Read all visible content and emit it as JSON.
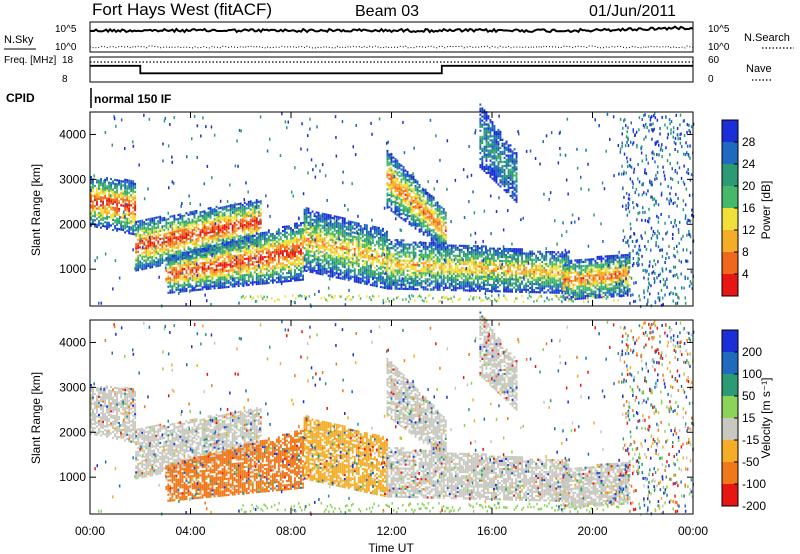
{
  "header": {
    "title": "Fort Hays West (fitACF)",
    "beam": "Beam 03",
    "date": "01/Jun/2011"
  },
  "chart_data": [
    {
      "type": "line",
      "panel": "noise",
      "series": [
        {
          "name": "N.Sky",
          "style": "solid"
        },
        {
          "name": "N.Search",
          "style": "dotted"
        }
      ],
      "yticks_left": [
        "10^5",
        "10^0"
      ],
      "yticks_right": [
        "10^5",
        "10^0"
      ]
    },
    {
      "type": "line",
      "panel": "frequency",
      "series": [
        {
          "name": "Freq. [MHz]",
          "style": "solid",
          "x": [
            "00:00",
            "02:00",
            "02:00",
            "14:00",
            "14:00",
            "24:00"
          ],
          "y": [
            14.5,
            14.5,
            11.5,
            11.5,
            14.5,
            14.5
          ]
        },
        {
          "name": "Nave",
          "style": "dotted"
        }
      ],
      "yticks_left": [
        "18",
        "8"
      ],
      "yticks_right": [
        "60",
        "0"
      ],
      "ylim_left": [
        8,
        18
      ],
      "ylim_right": [
        0,
        60
      ]
    },
    {
      "type": "table",
      "panel": "cpid",
      "label": "CPID",
      "rows": [
        {
          "start": "00:00",
          "end": "24:00",
          "text": "normal 150 IF"
        }
      ]
    },
    {
      "type": "heatmap",
      "panel": "power",
      "xlabel": "",
      "ylabel": "Slant Range [km]",
      "yticks": [
        1000,
        2000,
        3000,
        4000
      ],
      "ylim": [
        180,
        4500
      ],
      "colorbar": {
        "label": "Power [dB]",
        "ticks": [
          4,
          8,
          12,
          16,
          20,
          24,
          28
        ],
        "range": [
          0,
          32
        ],
        "colors": [
          "#1b2fd8",
          "#1f6abf",
          "#2c9a74",
          "#46b86a",
          "#f0e13a",
          "#f5ad28",
          "#f0681c",
          "#e81515"
        ]
      }
    },
    {
      "type": "heatmap",
      "panel": "velocity",
      "xlabel": "Time UT",
      "ylabel": "Slant Range [km]",
      "yticks": [
        1000,
        2000,
        3000,
        4000
      ],
      "ylim": [
        180,
        4500
      ],
      "xticks": [
        "00:00",
        "04:00",
        "08:00",
        "12:00",
        "16:00",
        "20:00",
        "00:00"
      ],
      "colorbar": {
        "label": "Velocity [m s⁻¹]",
        "ticks": [
          200,
          100,
          50,
          15,
          -15,
          -50,
          -100,
          -200
        ],
        "colors": [
          "#1b2fd8",
          "#1f6abf",
          "#2c9a74",
          "#8cd35a",
          "#c8c8c0",
          "#f5ad28",
          "#f0781a",
          "#e81515"
        ]
      }
    }
  ]
}
